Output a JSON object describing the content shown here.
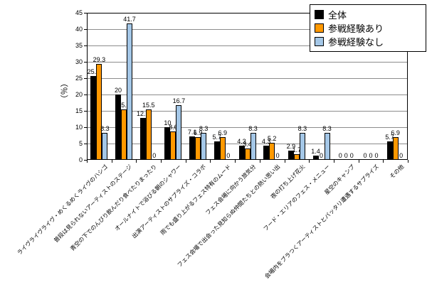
{
  "chart_data": {
    "type": "bar",
    "title": "",
    "ylabel": "（％）",
    "ylim": [
      0,
      45
    ],
    "ytick_step": 5,
    "grid": "horizontal",
    "legend_position": "top-right",
    "categories": [
      "ライヴライヴライヴ・めくるめくライヴのハシゴ",
      "普段は見られないアーティストのステージ",
      "青空の下でのんびり飲んだり食べたりまったり",
      "オールナイトで浴びる朝のシャワー",
      "出演アーティストのサプライズ・コラボ",
      "雨でも盛り上がるフェス特有のムード",
      "フェス会場に向かう旅気分",
      "フェス会場で出会った見知らぬ仲間たちとの熱い思い出",
      "夜の打ち上げ花火",
      "フード・エリアのフェス・メニュー",
      "星空のキャンプ",
      "会場内をブラつくアーティストとバッタリ遭遇するサプライズ",
      "その他"
    ],
    "series": [
      {
        "name": "全体",
        "color": "#000000",
        "values": [
          25.7,
          20,
          12.9,
          10,
          7.1,
          5.7,
          4.3,
          4.3,
          2.9,
          1.4,
          0,
          0,
          5.7
        ]
      },
      {
        "name": "参戦経験あり",
        "color": "#FF9900",
        "values": [
          29.3,
          15.5,
          15.5,
          8.6,
          6.9,
          6.9,
          3.4,
          5.2,
          1.7,
          0,
          0,
          0,
          6.9
        ]
      },
      {
        "name": "参戦経験なし",
        "color": "#A4C7E7",
        "values": [
          8.3,
          41.7,
          0,
          16.7,
          8.3,
          0,
          8.3,
          0,
          8.3,
          8.3,
          0,
          0,
          0
        ]
      }
    ],
    "ytick_labels": [
      "0",
      "5",
      "10",
      "15",
      "20",
      "25",
      "30",
      "35",
      "40",
      "45"
    ]
  }
}
